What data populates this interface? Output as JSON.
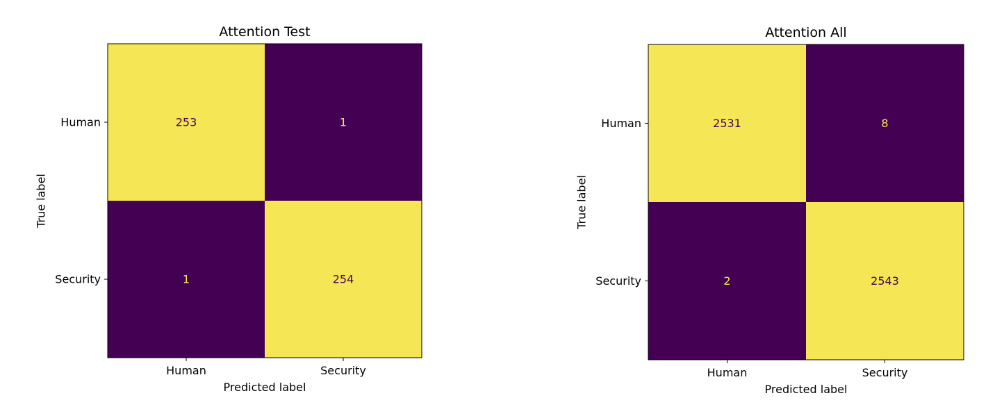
{
  "chart_data": [
    {
      "type": "heatmap",
      "title": "Attention Test",
      "xlabel": "Predicted label",
      "ylabel": "True label",
      "x_categories": [
        "Human",
        "Security"
      ],
      "y_categories": [
        "Human",
        "Security"
      ],
      "values": [
        [
          253,
          1
        ],
        [
          1,
          254
        ]
      ],
      "colormap": "viridis",
      "colors": {
        "high": "#f5e655",
        "low": "#440154",
        "text_on_high": "#440154",
        "text_on_low": "#f5e655"
      },
      "grid": false,
      "colorbar": false
    },
    {
      "type": "heatmap",
      "title": "Attention All",
      "xlabel": "Predicted label",
      "ylabel": "True label",
      "x_categories": [
        "Human",
        "Security"
      ],
      "y_categories": [
        "Human",
        "Security"
      ],
      "values": [
        [
          2531,
          8
        ],
        [
          2,
          2543
        ]
      ],
      "colormap": "viridis",
      "colors": {
        "high": "#f5e655",
        "low": "#440154",
        "text_on_high": "#440154",
        "text_on_low": "#f5e655"
      },
      "grid": false,
      "colorbar": false
    }
  ]
}
